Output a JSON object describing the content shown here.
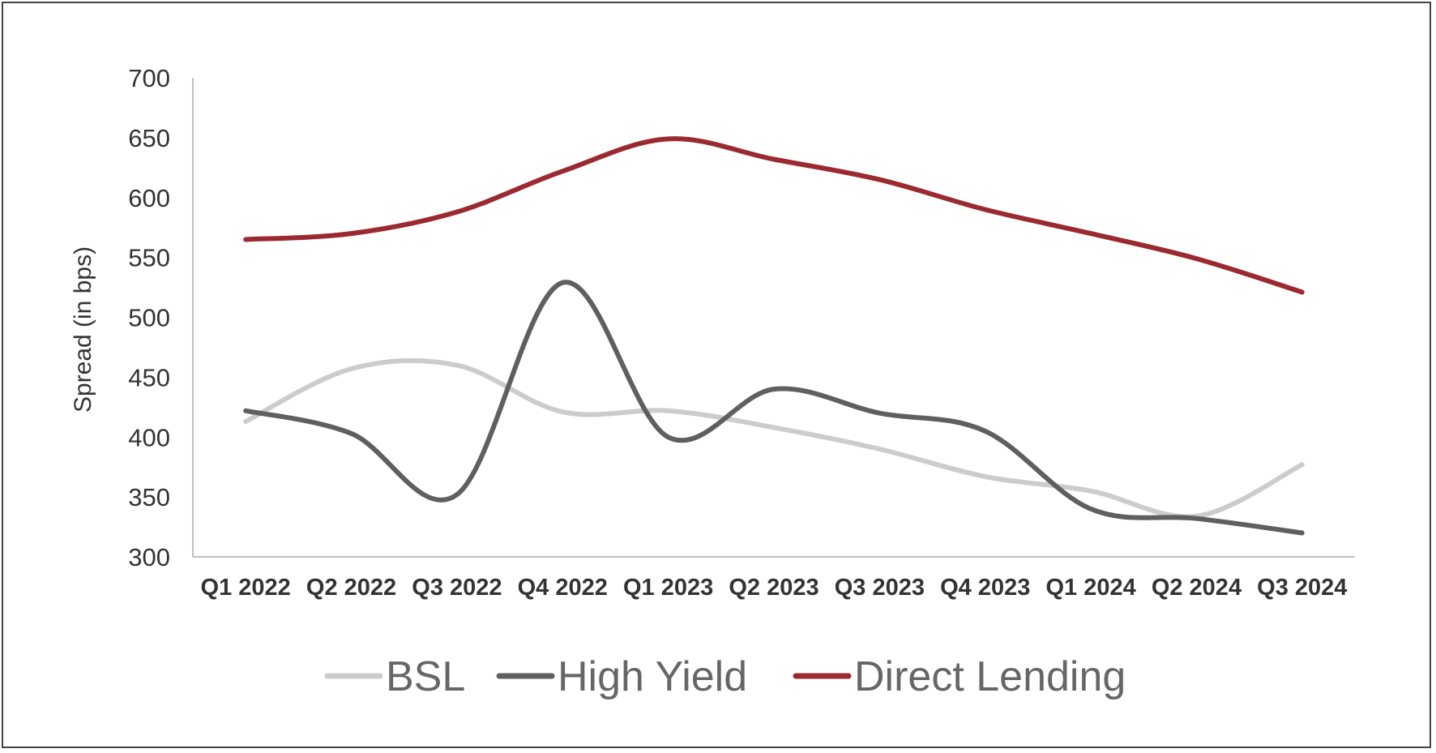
{
  "chart_data": {
    "type": "line",
    "title": "",
    "xlabel": "",
    "ylabel": "Spread (in bps)",
    "ylim": [
      300,
      700
    ],
    "yticks": [
      300,
      350,
      400,
      450,
      500,
      550,
      600,
      650,
      700
    ],
    "categories": [
      "Q1 2022",
      "Q2 2022",
      "Q3 2022",
      "Q4 2022",
      "Q1 2023",
      "Q2 2023",
      "Q3 2023",
      "Q4 2023",
      "Q1 2024",
      "Q2 2024",
      "Q3 2024"
    ],
    "grid": false,
    "legend_position": "bottom",
    "series": [
      {
        "name": "BSL",
        "color": "#cccccc",
        "values": [
          413,
          457,
          460,
          421,
          422,
          408,
          390,
          367,
          355,
          334,
          377
        ]
      },
      {
        "name": "High Yield",
        "color": "#5f5f5f",
        "values": [
          422,
          403,
          352,
          529,
          400,
          440,
          420,
          405,
          340,
          332,
          320
        ]
      },
      {
        "name": "Direct Lending",
        "color": "#9b2a30",
        "values": [
          565,
          570,
          588,
          622,
          649,
          632,
          615,
          590,
          570,
          549,
          521
        ]
      }
    ]
  }
}
